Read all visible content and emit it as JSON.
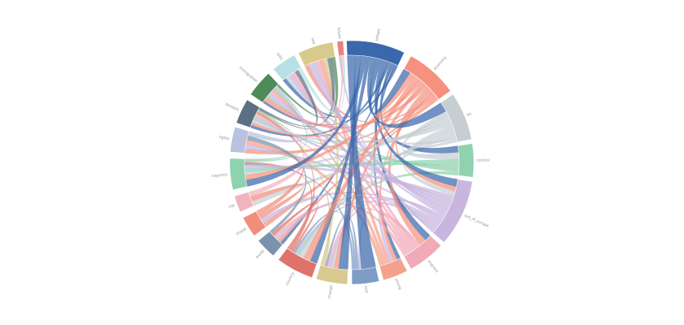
{
  "figure": {
    "background": "#ffffff",
    "label_color": "#8e8e8e"
  },
  "chart_data": {
    "type": "chord",
    "title": "",
    "center": [
      432,
      200
    ],
    "outer_radius": 150,
    "inner_radius": 132,
    "label_radius": 153,
    "ribbon_opacity": 0.72,
    "nodes": [
      {
        "id": "britain",
        "label": "britain",
        "start": 357.5,
        "end": 385.5,
        "color": "#3a68ac"
      },
      {
        "id": "economy",
        "label": "economy",
        "start": 29,
        "end": 54,
        "color": "#f5917e"
      },
      {
        "id": "eu",
        "label": "eu",
        "start": 56,
        "end": 79,
        "color": "#c6ced2"
      },
      {
        "id": "control",
        "label": "control",
        "start": 81,
        "end": 97,
        "color": "#8fd2ae"
      },
      {
        "id": "out_of_europe",
        "label": "out_of_europe",
        "start": 99,
        "end": 131,
        "color": "#c8b6df"
      },
      {
        "id": "migrant",
        "label": "migrant",
        "start": 133,
        "end": 151,
        "color": "#f2a9b8"
      },
      {
        "id": "young",
        "label": "young",
        "start": 153,
        "end": 165,
        "color": "#f4a18b"
      },
      {
        "id": "exit",
        "label": "exit",
        "start": 167,
        "end": 180,
        "color": "#7e9cc5"
      },
      {
        "id": "change",
        "label": "change",
        "start": 182,
        "end": 197,
        "color": "#d8c98e"
      },
      {
        "id": "country",
        "label": "country",
        "start": 199,
        "end": 217,
        "color": "#e0726b"
      },
      {
        "id": "world",
        "label": "world",
        "start": 220,
        "end": 230,
        "color": "#7b92ac"
      },
      {
        "id": "threat",
        "label": "threat",
        "start": 233,
        "end": 243,
        "color": "#f08d7b"
      },
      {
        "id": "risk",
        "label": "risk",
        "start": 246,
        "end": 254,
        "color": "#f1b3bd"
      },
      {
        "id": "migrants",
        "label": "migrants",
        "start": 257,
        "end": 272,
        "color": "#8fd2ae"
      },
      {
        "id": "rights",
        "label": "rights",
        "start": 275,
        "end": 287,
        "color": "#b9c2df"
      },
      {
        "id": "borders",
        "label": "borders",
        "start": 289,
        "end": 301,
        "color": "#5a7184"
      },
      {
        "id": "immigration",
        "label": "immigration",
        "start": 304,
        "end": 317,
        "color": "#4e8a5a"
      },
      {
        "id": "jobs",
        "label": "jobs",
        "start": 320,
        "end": 332,
        "color": "#b8e0e4"
      },
      {
        "id": "law",
        "label": "law",
        "start": 334,
        "end": 351,
        "color": "#d9c98c"
      },
      {
        "id": "future",
        "label": "future",
        "start": 353,
        "end": 356,
        "color": "#e8837f"
      }
    ],
    "links": [
      {
        "source": "britain",
        "target": "exit",
        "value": 6
      },
      {
        "source": "britain",
        "target": "change",
        "value": 4
      },
      {
        "source": "britain",
        "target": "migrants",
        "value": 4
      },
      {
        "source": "britain",
        "target": "country",
        "value": 3
      },
      {
        "source": "britain",
        "target": "eu",
        "value": 4
      },
      {
        "source": "britain",
        "target": "economy",
        "value": 4
      },
      {
        "source": "britain",
        "target": "out_of_europe",
        "value": 3
      },
      {
        "source": "britain",
        "target": "migrant",
        "value": 2
      },
      {
        "source": "britain",
        "target": "borders",
        "value": 2
      },
      {
        "source": "britain",
        "target": "control",
        "value": 2
      },
      {
        "source": "britain",
        "target": "world",
        "value": 1
      },
      {
        "source": "britain",
        "target": "young",
        "value": 1
      },
      {
        "source": "britain",
        "target": "jobs",
        "value": 1
      },
      {
        "source": "britain",
        "target": "immigration",
        "value": 1
      },
      {
        "source": "economy",
        "target": "migrants",
        "value": 3
      },
      {
        "source": "economy",
        "target": "country",
        "value": 3
      },
      {
        "source": "economy",
        "target": "borders",
        "value": 2
      },
      {
        "source": "economy",
        "target": "change",
        "value": 2
      },
      {
        "source": "economy",
        "target": "immigration",
        "value": 2
      },
      {
        "source": "economy",
        "target": "out_of_europe",
        "value": 2
      },
      {
        "source": "economy",
        "target": "migrant",
        "value": 2
      },
      {
        "source": "economy",
        "target": "young",
        "value": 1
      },
      {
        "source": "economy",
        "target": "law",
        "value": 1
      },
      {
        "source": "economy",
        "target": "rights",
        "value": 1
      },
      {
        "source": "economy",
        "target": "threat",
        "value": 1
      },
      {
        "source": "economy",
        "target": "world",
        "value": 1
      },
      {
        "source": "eu",
        "target": "control",
        "value": 2
      },
      {
        "source": "eu",
        "target": "migrants",
        "value": 2
      },
      {
        "source": "eu",
        "target": "borders",
        "value": 2
      },
      {
        "source": "eu",
        "target": "out_of_europe",
        "value": 2
      },
      {
        "source": "eu",
        "target": "country",
        "value": 2
      },
      {
        "source": "eu",
        "target": "change",
        "value": 1
      },
      {
        "source": "eu",
        "target": "jobs",
        "value": 1
      },
      {
        "source": "eu",
        "target": "risk",
        "value": 1
      },
      {
        "source": "control",
        "target": "migrants",
        "value": 2
      },
      {
        "source": "control",
        "target": "borders",
        "value": 1
      },
      {
        "source": "control",
        "target": "immigration",
        "value": 1
      },
      {
        "source": "control",
        "target": "country",
        "value": 1
      },
      {
        "source": "out_of_europe",
        "target": "migrants",
        "value": 2
      },
      {
        "source": "out_of_europe",
        "target": "borders",
        "value": 2
      },
      {
        "source": "out_of_europe",
        "target": "immigration",
        "value": 2
      },
      {
        "source": "out_of_europe",
        "target": "law",
        "value": 2
      },
      {
        "source": "out_of_europe",
        "target": "jobs",
        "value": 1
      },
      {
        "source": "out_of_europe",
        "target": "change",
        "value": 1
      },
      {
        "source": "out_of_europe",
        "target": "young",
        "value": 1
      },
      {
        "source": "out_of_europe",
        "target": "rights",
        "value": 1
      },
      {
        "source": "out_of_europe",
        "target": "threat",
        "value": 1
      },
      {
        "source": "out_of_europe",
        "target": "world",
        "value": 1
      },
      {
        "source": "out_of_europe",
        "target": "exit",
        "value": 1
      },
      {
        "source": "out_of_europe",
        "target": "country",
        "value": 1
      },
      {
        "source": "out_of_europe",
        "target": "future",
        "value": 1
      },
      {
        "source": "migrant",
        "target": "change",
        "value": 1
      },
      {
        "source": "migrant",
        "target": "law",
        "value": 1
      },
      {
        "source": "migrant",
        "target": "jobs",
        "value": 1
      },
      {
        "source": "migrant",
        "target": "immigration",
        "value": 1
      },
      {
        "source": "migrant",
        "target": "borders",
        "value": 1
      },
      {
        "source": "migrant",
        "target": "world",
        "value": 1
      },
      {
        "source": "young",
        "target": "law",
        "value": 1
      },
      {
        "source": "young",
        "target": "immigration",
        "value": 1
      },
      {
        "source": "young",
        "target": "rights",
        "value": 1
      },
      {
        "source": "exit",
        "target": "change",
        "value": 1
      },
      {
        "source": "exit",
        "target": "country",
        "value": 1
      },
      {
        "source": "exit",
        "target": "migrants",
        "value": 1
      },
      {
        "source": "change",
        "target": "borders",
        "value": 1
      },
      {
        "source": "change",
        "target": "law",
        "value": 1
      },
      {
        "source": "country",
        "target": "world",
        "value": 1
      },
      {
        "source": "country",
        "target": "borders",
        "value": 1
      },
      {
        "source": "country",
        "target": "migrants",
        "value": 1
      },
      {
        "source": "world",
        "target": "rights",
        "value": 1
      },
      {
        "source": "threat",
        "target": "risk",
        "value": 1
      },
      {
        "source": "threat",
        "target": "borders",
        "value": 1
      },
      {
        "source": "risk",
        "target": "future",
        "value": 1
      },
      {
        "source": "migrants",
        "target": "borders",
        "value": 1
      },
      {
        "source": "migrants",
        "target": "immigration",
        "value": 1
      },
      {
        "source": "rights",
        "target": "immigration",
        "value": 1
      },
      {
        "source": "borders",
        "target": "jobs",
        "value": 1
      },
      {
        "source": "borders",
        "target": "law",
        "value": 1
      },
      {
        "source": "immigration",
        "target": "law",
        "value": 1
      },
      {
        "source": "jobs",
        "target": "future",
        "value": 1
      }
    ]
  }
}
